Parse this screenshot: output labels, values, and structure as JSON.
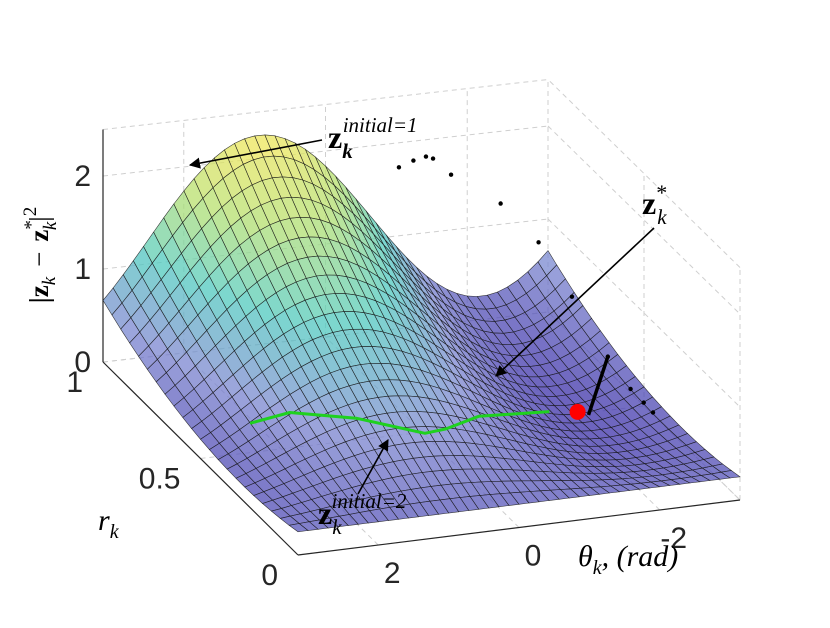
{
  "chart_data": {
    "type": "surface",
    "title": "",
    "xlabel": {
      "symbol": "θ",
      "subscript": "k",
      "suffix": ", (rad)"
    },
    "ylabel": {
      "symbol": "r",
      "subscript": "k"
    },
    "zlabel": {
      "symbol_left": "|z",
      "subscript_left": "k",
      "minus": "−",
      "symbol_right": "z",
      "superscript_right": "*",
      "subscript_right": "k",
      "close": "|",
      "power": "2"
    },
    "x_ticks": [
      "2",
      "0",
      "-2"
    ],
    "y_ticks": [
      "0",
      "0.5",
      "1"
    ],
    "z_ticks": [
      "0",
      "1",
      "2"
    ],
    "xlim": [
      -3.14,
      3.14
    ],
    "ylim": [
      0,
      1
    ],
    "zlim": [
      0,
      2.5
    ],
    "grid": true,
    "colormap": [
      "#3b2fa8",
      "#7b86d0",
      "#4fc9bf",
      "#b2df6f",
      "#f4e658"
    ],
    "surface_alpha": 0.75,
    "annotations": [
      {
        "name": "initial-1",
        "base": "z",
        "subscript": "k",
        "superscript": "initial=1"
      },
      {
        "name": "optimum",
        "base": "z",
        "subscript": "k",
        "superscript": "*"
      },
      {
        "name": "initial-2",
        "base": "z",
        "subscript": "k",
        "superscript": "initial=2"
      }
    ],
    "series": [
      {
        "name": "",
        "kind": "trajectory",
        "color": "#000000",
        "points": [
          {
            "theta": -0.9,
            "r": 0.95,
            "z": 1.85
          },
          {
            "theta": -1.05,
            "r": 0.93,
            "z": 1.95
          },
          {
            "theta": -1.2,
            "r": 0.92,
            "z": 2.0
          },
          {
            "theta": -1.3,
            "r": 0.92,
            "z": 1.97
          },
          {
            "theta": -1.5,
            "r": 0.9,
            "z": 1.82
          },
          {
            "theta": -2.2,
            "r": 0.9,
            "z": 1.45
          },
          {
            "theta": -2.6,
            "r": 0.85,
            "z": 1.1
          },
          {
            "theta": -2.8,
            "r": 0.75,
            "z": 0.7
          },
          {
            "theta": -2.9,
            "r": 0.6,
            "z": 0.35
          },
          {
            "theta": -2.95,
            "r": 0.5,
            "z": 0.2
          },
          {
            "theta": -3.0,
            "r": 0.45,
            "z": 0.15
          },
          {
            "theta": -3.05,
            "r": 0.42,
            "z": 0.1
          }
        ]
      },
      {
        "name": "",
        "kind": "trajectory",
        "color": "#1fd11f",
        "points": [
          {
            "theta": 2.3,
            "r": 0.55,
            "z": 0.2
          },
          {
            "theta": 1.6,
            "r": 0.6,
            "z": 0.15
          },
          {
            "theta": 0.8,
            "r": 0.55,
            "z": 0.12
          },
          {
            "theta": 0.1,
            "r": 0.45,
            "z": 0.1
          },
          {
            "theta": -0.2,
            "r": 0.45,
            "z": 0.12
          },
          {
            "theta": -0.8,
            "r": 0.5,
            "z": 0.1
          },
          {
            "theta": -1.8,
            "r": 0.5,
            "z": 0.06
          }
        ]
      },
      {
        "name": "",
        "kind": "optimum",
        "color": "#ff0000",
        "points": [
          {
            "theta": -2.2,
            "r": 0.5,
            "z": 0.0
          }
        ]
      }
    ]
  }
}
